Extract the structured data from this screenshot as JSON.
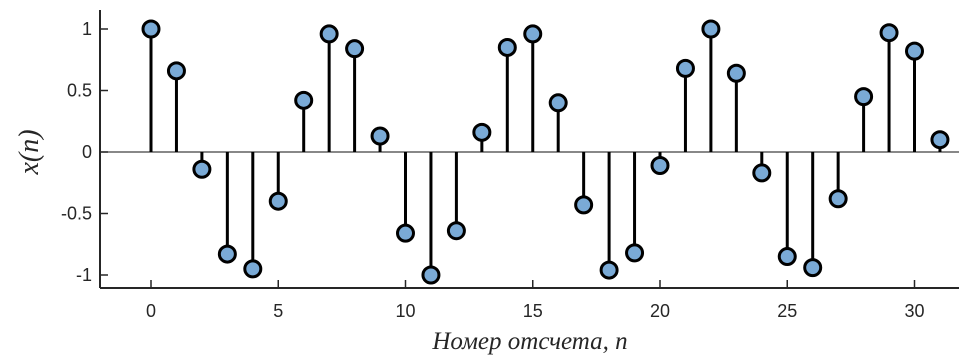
{
  "chart_data": {
    "type": "stem",
    "title": "",
    "xlabel": "Номер отсчета, n",
    "ylabel": "x(n)",
    "xlim": [
      -1.9,
      32.1
    ],
    "ylim": [
      -1.1,
      1.1
    ],
    "xticks": [
      0,
      5,
      10,
      15,
      20,
      25,
      30
    ],
    "yticks": [
      -1,
      -0.5,
      0,
      0.5,
      1
    ],
    "xtick_labels": [
      "0",
      "5",
      "10",
      "15",
      "20",
      "25",
      "30"
    ],
    "ytick_labels": [
      "-1",
      "-0.5",
      "0",
      "0.5",
      "1"
    ],
    "grid": false,
    "marker_fill": "#7aaad6",
    "stem_color": "#000000",
    "x": [
      0,
      1,
      2,
      3,
      4,
      5,
      6,
      7,
      8,
      9,
      10,
      11,
      12,
      13,
      14,
      15,
      16,
      17,
      18,
      19,
      20,
      21,
      22,
      23,
      24,
      25,
      26,
      27,
      28,
      29,
      30,
      31
    ],
    "values": [
      1.0,
      0.66,
      -0.14,
      -0.83,
      -0.95,
      -0.4,
      0.42,
      0.96,
      0.84,
      0.13,
      -0.66,
      -1.0,
      -0.64,
      0.16,
      0.85,
      0.96,
      0.4,
      -0.43,
      -0.96,
      -0.82,
      -0.11,
      0.68,
      1.0,
      0.64,
      -0.17,
      -0.85,
      -0.94,
      -0.38,
      0.45,
      0.97,
      0.82,
      0.1
    ]
  }
}
